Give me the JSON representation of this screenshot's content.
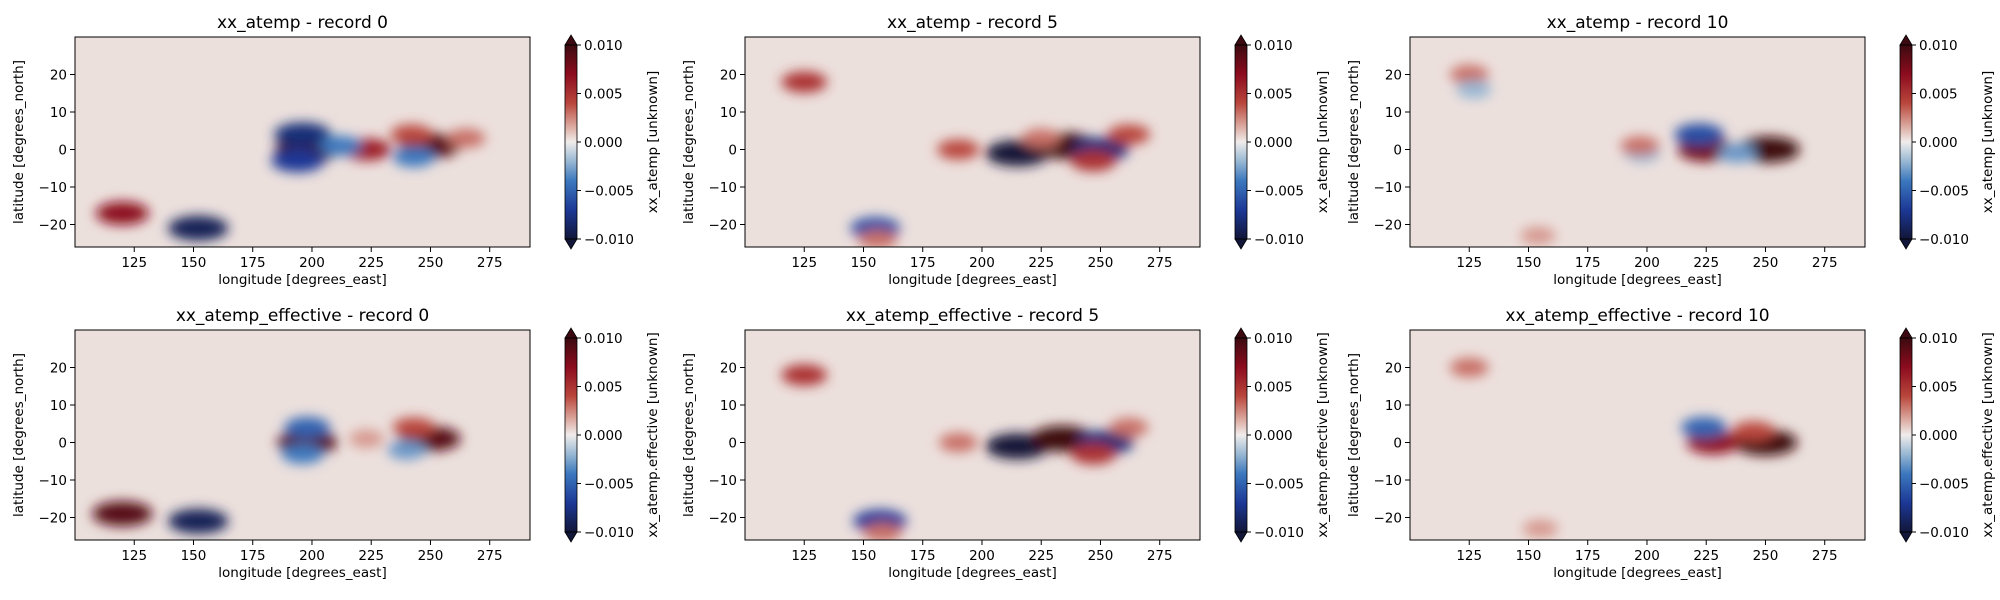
{
  "chart_data": [
    {
      "type": "heatmap",
      "title": "xx_atemp - record 0",
      "xlabel": "longitude [degrees_east]",
      "ylabel": "latitude [degrees_north]",
      "colorbar_label": "xx_atemp [unknown]",
      "xlim": [
        100,
        292
      ],
      "ylim": [
        -26,
        30
      ],
      "xticks": [
        125,
        150,
        175,
        200,
        225,
        250,
        275
      ],
      "yticks": [
        -20,
        -10,
        0,
        10,
        20
      ],
      "clim": [
        -0.01,
        0.01
      ],
      "cbar_ticks": [
        0.01,
        0.005,
        0.0,
        -0.005,
        -0.01
      ],
      "cbar_tick_labels": [
        "0.010",
        "0.005",
        "0.000",
        "−0.005",
        "−0.010"
      ],
      "colormap": "diverging blue-white-red (balance)",
      "features": [
        {
          "lon": 198,
          "lat": 0,
          "value": 0.01
        },
        {
          "lon": 196,
          "lat": 4,
          "value": -0.008
        },
        {
          "lon": 194,
          "lat": -3,
          "value": -0.007
        },
        {
          "lon": 223,
          "lat": 0,
          "value": 0.006
        },
        {
          "lon": 212,
          "lat": 1,
          "value": -0.004
        },
        {
          "lon": 250,
          "lat": 1,
          "value": 0.009
        },
        {
          "lon": 242,
          "lat": 4,
          "value": 0.004
        },
        {
          "lon": 243,
          "lat": -2,
          "value": -0.004
        },
        {
          "lon": 152,
          "lat": -21,
          "value": -0.009
        },
        {
          "lon": 120,
          "lat": -17,
          "value": 0.007
        },
        {
          "lon": 265,
          "lat": 3,
          "value": 0.003
        }
      ]
    },
    {
      "type": "heatmap",
      "title": "xx_atemp - record 5",
      "xlabel": "longitude [degrees_east]",
      "ylabel": "latitude [degrees_north]",
      "colorbar_label": "xx_atemp [unknown]",
      "xlim": [
        100,
        292
      ],
      "ylim": [
        -26,
        30
      ],
      "xticks": [
        125,
        150,
        175,
        200,
        225,
        250,
        275
      ],
      "yticks": [
        -20,
        -10,
        0,
        10,
        20
      ],
      "clim": [
        -0.01,
        0.01
      ],
      "cbar_ticks": [
        0.01,
        0.005,
        0.0,
        -0.005,
        -0.01
      ],
      "cbar_tick_labels": [
        "0.010",
        "0.005",
        "0.000",
        "−0.005",
        "−0.010"
      ],
      "colormap": "diverging blue-white-red (balance)",
      "features": [
        {
          "lon": 215,
          "lat": -1,
          "value": -0.01
        },
        {
          "lon": 235,
          "lat": 1,
          "value": 0.01
        },
        {
          "lon": 250,
          "lat": 0,
          "value": -0.008
        },
        {
          "lon": 247,
          "lat": -3,
          "value": 0.005
        },
        {
          "lon": 225,
          "lat": 3,
          "value": 0.003
        },
        {
          "lon": 190,
          "lat": 0,
          "value": 0.004
        },
        {
          "lon": 262,
          "lat": 4,
          "value": 0.004
        },
        {
          "lon": 125,
          "lat": 18,
          "value": 0.005
        },
        {
          "lon": 155,
          "lat": -21,
          "value": -0.006
        },
        {
          "lon": 156,
          "lat": -24,
          "value": 0.003
        }
      ]
    },
    {
      "type": "heatmap",
      "title": "xx_atemp - record 10",
      "xlabel": "longitude [degrees_east]",
      "ylabel": "latitude [degrees_north]",
      "colorbar_label": "xx_atemp [unknown]",
      "xlim": [
        100,
        292
      ],
      "ylim": [
        -26,
        30
      ],
      "xticks": [
        125,
        150,
        175,
        200,
        225,
        250,
        275
      ],
      "yticks": [
        -20,
        -10,
        0,
        10,
        20
      ],
      "clim": [
        -0.01,
        0.01
      ],
      "cbar_ticks": [
        0.01,
        0.005,
        0.0,
        -0.005,
        -0.01
      ],
      "cbar_tick_labels": [
        "0.010",
        "0.005",
        "0.000",
        "−0.005",
        "−0.010"
      ],
      "colormap": "diverging blue-white-red (balance)",
      "features": [
        {
          "lon": 225,
          "lat": 0,
          "value": 0.008
        },
        {
          "lon": 251,
          "lat": 0,
          "value": 0.01
        },
        {
          "lon": 222,
          "lat": 4,
          "value": -0.006
        },
        {
          "lon": 238,
          "lat": -1,
          "value": -0.003
        },
        {
          "lon": 198,
          "lat": -1,
          "value": -0.002
        },
        {
          "lon": 197,
          "lat": 1,
          "value": 0.003
        },
        {
          "lon": 125,
          "lat": 20,
          "value": 0.003
        },
        {
          "lon": 127,
          "lat": 16,
          "value": -0.002
        },
        {
          "lon": 154,
          "lat": -23,
          "value": 0.002
        }
      ]
    },
    {
      "type": "heatmap",
      "title": "xx_atemp_effective - record 0",
      "xlabel": "longitude [degrees_east]",
      "ylabel": "latitude [degrees_north]",
      "colorbar_label": "xx_atemp.effective [unknown]",
      "xlim": [
        100,
        292
      ],
      "ylim": [
        -26,
        30
      ],
      "xticks": [
        125,
        150,
        175,
        200,
        225,
        250,
        275
      ],
      "yticks": [
        -20,
        -10,
        0,
        10,
        20
      ],
      "clim": [
        -0.01,
        0.01
      ],
      "cbar_ticks": [
        0.01,
        0.005,
        0.0,
        -0.005,
        -0.01
      ],
      "cbar_tick_labels": [
        "0.010",
        "0.005",
        "0.000",
        "−0.005",
        "−0.010"
      ],
      "colormap": "diverging blue-white-red (balance)",
      "features": [
        {
          "lon": 198,
          "lat": 0,
          "value": 0.009
        },
        {
          "lon": 198,
          "lat": 4,
          "value": -0.005
        },
        {
          "lon": 196,
          "lat": -3,
          "value": -0.004
        },
        {
          "lon": 250,
          "lat": 1,
          "value": 0.009
        },
        {
          "lon": 243,
          "lat": 4,
          "value": 0.004
        },
        {
          "lon": 240,
          "lat": -2,
          "value": -0.003
        },
        {
          "lon": 223,
          "lat": 1,
          "value": 0.002
        },
        {
          "lon": 152,
          "lat": -21,
          "value": -0.009
        },
        {
          "lon": 120,
          "lat": -19,
          "value": 0.009
        }
      ]
    },
    {
      "type": "heatmap",
      "title": "xx_atemp_effective - record 5",
      "xlabel": "longitude [degrees_east]",
      "ylabel": "latitude [degrees_north]",
      "colorbar_label": "xx_atemp.effective [unknown]",
      "xlim": [
        100,
        292
      ],
      "ylim": [
        -26,
        30
      ],
      "xticks": [
        125,
        150,
        175,
        200,
        225,
        250,
        275
      ],
      "yticks": [
        -20,
        -10,
        0,
        10,
        20
      ],
      "clim": [
        -0.01,
        0.01
      ],
      "cbar_ticks": [
        0.01,
        0.005,
        0.0,
        -0.005,
        -0.01
      ],
      "cbar_tick_labels": [
        "0.010",
        "0.005",
        "0.000",
        "−0.005",
        "−0.010"
      ],
      "colormap": "diverging blue-white-red (balance)",
      "features": [
        {
          "lon": 215,
          "lat": -1,
          "value": -0.01
        },
        {
          "lon": 234,
          "lat": 1,
          "value": 0.01
        },
        {
          "lon": 252,
          "lat": 0,
          "value": -0.008
        },
        {
          "lon": 247,
          "lat": -3,
          "value": 0.005
        },
        {
          "lon": 190,
          "lat": 0,
          "value": 0.003
        },
        {
          "lon": 262,
          "lat": 4,
          "value": 0.003
        },
        {
          "lon": 125,
          "lat": 18,
          "value": 0.005
        },
        {
          "lon": 157,
          "lat": -21,
          "value": -0.007
        },
        {
          "lon": 158,
          "lat": -24,
          "value": 0.003
        }
      ]
    },
    {
      "type": "heatmap",
      "title": "xx_atemp_effective - record 10",
      "xlabel": "longitude [degrees_east]",
      "ylabel": "latitude [degrees_north]",
      "colorbar_label": "xx_atemp.effective [unknown]",
      "xlim": [
        100,
        292
      ],
      "ylim": [
        -26,
        30
      ],
      "xticks": [
        125,
        150,
        175,
        200,
        225,
        250,
        275
      ],
      "yticks": [
        -20,
        -10,
        0,
        10,
        20
      ],
      "clim": [
        -0.01,
        0.01
      ],
      "cbar_ticks": [
        0.01,
        0.005,
        0.0,
        -0.005,
        -0.01
      ],
      "cbar_tick_labels": [
        "0.010",
        "0.005",
        "0.000",
        "−0.005",
        "−0.010"
      ],
      "colormap": "diverging blue-white-red (balance)",
      "features": [
        {
          "lon": 250,
          "lat": 0,
          "value": 0.01
        },
        {
          "lon": 228,
          "lat": 0,
          "value": 0.007
        },
        {
          "lon": 224,
          "lat": 4,
          "value": -0.005
        },
        {
          "lon": 245,
          "lat": 3,
          "value": 0.004
        },
        {
          "lon": 125,
          "lat": 20,
          "value": 0.003
        },
        {
          "lon": 155,
          "lat": -23,
          "value": 0.002
        }
      ]
    }
  ]
}
